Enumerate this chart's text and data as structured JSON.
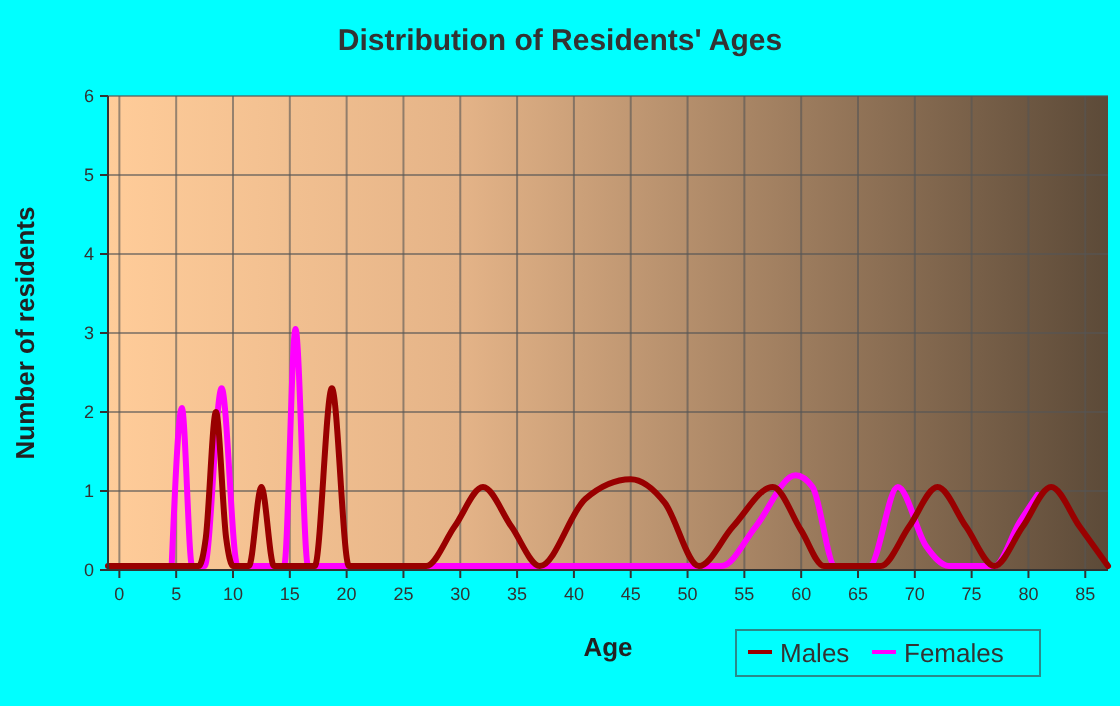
{
  "chart_data": {
    "type": "line",
    "title": "Distribution of Residents' Ages",
    "xlabel": "Age",
    "ylabel": "Number of residents",
    "xlim": [
      -1,
      87
    ],
    "xticks": [
      0,
      5,
      10,
      15,
      20,
      25,
      30,
      35,
      40,
      45,
      50,
      55,
      60,
      65,
      70,
      75,
      80,
      85
    ],
    "ylim": [
      0,
      6
    ],
    "yticks": [
      0,
      1,
      2,
      3,
      4,
      5,
      6
    ],
    "grid": true,
    "legend": "bottom",
    "marker": "none",
    "line_style": "solid",
    "series": [
      {
        "name": "Males",
        "color": "#990000",
        "x": [
          -1,
          7,
          7.6,
          8.5,
          9.4,
          10,
          11.4,
          12.5,
          13.6,
          17.2,
          18.7,
          20.2,
          27,
          29.5,
          32,
          34.5,
          37,
          41,
          45,
          48,
          51,
          54,
          57.5,
          60,
          62,
          67,
          69.5,
          72,
          74.5,
          77,
          79.5,
          82,
          84.5,
          87
        ],
        "values": [
          0.05,
          0.05,
          0.4,
          2,
          0.4,
          0.05,
          0.05,
          1.05,
          0.05,
          0.05,
          2.3,
          0.05,
          0.05,
          0.55,
          1.05,
          0.55,
          0.05,
          0.9,
          1.15,
          0.85,
          0.05,
          0.55,
          1.05,
          0.5,
          0.05,
          0.05,
          0.55,
          1.05,
          0.55,
          0.05,
          0.55,
          1.05,
          0.55,
          0.05
        ]
      },
      {
        "name": "Females",
        "color": "#ff00ff",
        "x": [
          4.6,
          5.5,
          6.4,
          7.5,
          9,
          10.4,
          14.5,
          15.5,
          16.6,
          20,
          50,
          53,
          56,
          59.5,
          61,
          63,
          66,
          68.5,
          71,
          73,
          77,
          79.2,
          80.8
        ],
        "values": [
          0.05,
          2.05,
          0.05,
          0.05,
          2.3,
          0.05,
          0.05,
          3.05,
          0.05,
          0.05,
          0.05,
          0.05,
          0.55,
          1.2,
          1.05,
          0.05,
          0.05,
          1.05,
          0.3,
          0.05,
          0.05,
          0.6,
          0.95
        ]
      }
    ]
  }
}
